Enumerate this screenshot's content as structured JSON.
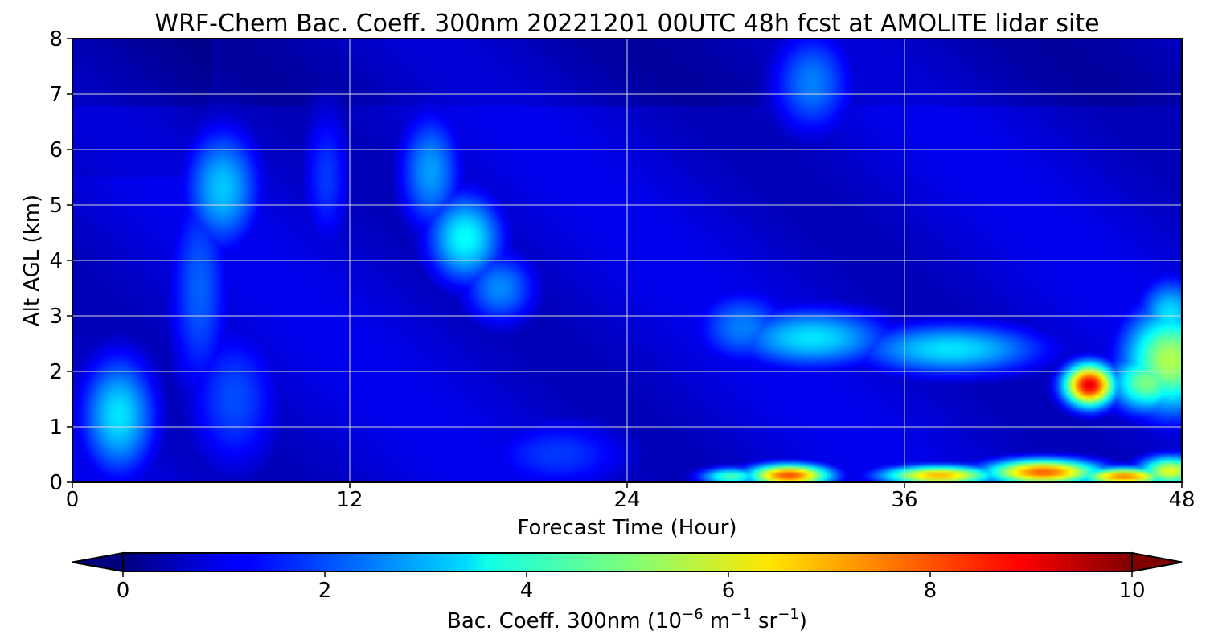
{
  "chart_data": {
    "type": "heatmap",
    "title": "WRF-Chem Bac. Coeff. 300nm  20221201 00UTC 48h fcst at AMOLITE lidar site",
    "xlabel": "Forecast Time (Hour)",
    "ylabel": "Alt AGL (km)",
    "xlim": [
      0,
      48
    ],
    "ylim": [
      0,
      8
    ],
    "x_ticks": [
      0,
      12,
      24,
      36,
      48
    ],
    "y_ticks": [
      0,
      1,
      2,
      3,
      4,
      5,
      6,
      7,
      8
    ],
    "grid": true,
    "colorbar": {
      "label_main": "Bac. Coeff. 300nm  (10",
      "label_exp1": "−6",
      "label_mid": " m",
      "label_exp2": "−1",
      "label_mid2": " sr",
      "label_exp3": "−1",
      "label_end": ")",
      "ticks": [
        0,
        2,
        4,
        6,
        8,
        10
      ],
      "range": [
        0,
        10
      ],
      "extend": "both",
      "colormap": "jet"
    },
    "features": [
      {
        "t": 2,
        "z": 1.2,
        "value": 3.5,
        "st": 1.2,
        "sz": 0.8
      },
      {
        "t": 6.5,
        "z": 5.3,
        "value": 3.2,
        "st": 1.2,
        "sz": 0.8
      },
      {
        "t": 5.5,
        "z": 3.5,
        "value": 2.2,
        "st": 1.0,
        "sz": 1.5
      },
      {
        "t": 7,
        "z": 1.5,
        "value": 2.0,
        "st": 1.5,
        "sz": 1.0
      },
      {
        "t": 17,
        "z": 4.4,
        "value": 3.8,
        "st": 1.2,
        "sz": 0.6
      },
      {
        "t": 15.5,
        "z": 5.6,
        "value": 2.8,
        "st": 1.0,
        "sz": 0.8
      },
      {
        "t": 18.5,
        "z": 3.5,
        "value": 2.6,
        "st": 1.2,
        "sz": 0.5
      },
      {
        "t": 32,
        "z": 2.6,
        "value": 3.5,
        "st": 2.5,
        "sz": 0.4
      },
      {
        "t": 29,
        "z": 2.8,
        "value": 2.5,
        "st": 1.5,
        "sz": 0.5
      },
      {
        "t": 38,
        "z": 2.4,
        "value": 3.5,
        "st": 3.0,
        "sz": 0.35
      },
      {
        "t": 44,
        "z": 1.75,
        "value": 9.0,
        "st": 0.8,
        "sz": 0.28
      },
      {
        "t": 47.5,
        "z": 2.2,
        "value": 5.5,
        "st": 1.5,
        "sz": 0.7
      },
      {
        "t": 46.5,
        "z": 1.8,
        "value": 5.0,
        "st": 1.2,
        "sz": 0.4
      },
      {
        "t": 47.5,
        "z": 3.0,
        "value": 3.5,
        "st": 1.0,
        "sz": 0.5
      },
      {
        "t": 32,
        "z": 7.2,
        "value": 2.5,
        "st": 1.3,
        "sz": 0.7
      },
      {
        "t": 31,
        "z": 0.12,
        "value": 8.0,
        "st": 1.3,
        "sz": 0.15
      },
      {
        "t": 37.5,
        "z": 0.12,
        "value": 7.0,
        "st": 1.8,
        "sz": 0.13
      },
      {
        "t": 42,
        "z": 0.18,
        "value": 7.8,
        "st": 1.8,
        "sz": 0.17
      },
      {
        "t": 45.5,
        "z": 0.1,
        "value": 7.5,
        "st": 1.4,
        "sz": 0.12
      },
      {
        "t": 47.5,
        "z": 0.2,
        "value": 6.0,
        "st": 1.0,
        "sz": 0.2
      },
      {
        "t": 28.5,
        "z": 0.1,
        "value": 4.5,
        "st": 1.0,
        "sz": 0.12
      },
      {
        "t": 21,
        "z": 0.5,
        "value": 1.8,
        "st": 2.5,
        "sz": 0.5
      },
      {
        "t": 11,
        "z": 5.5,
        "value": 1.8,
        "st": 0.8,
        "sz": 1.0
      }
    ],
    "background_value": 1.1
  }
}
